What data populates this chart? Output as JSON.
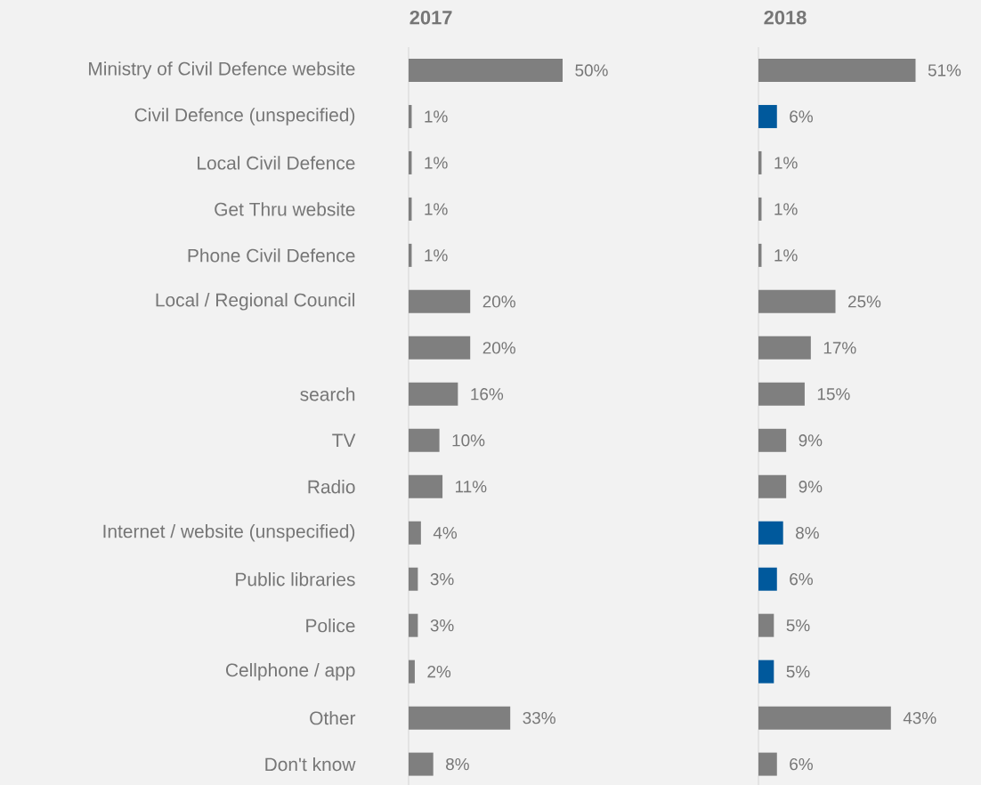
{
  "chart_data": [
    {
      "type": "bar",
      "orientation": "horizontal",
      "title": "2017",
      "tick_labels": "y",
      "categories": [
        "Ministry of Civil Defence website",
        "Civil Defence (unspecified)",
        "Local Civil Defence",
        "Get Thru website",
        "Phone Civil Defence",
        "Local / Regional Council",
        null,
        "search",
        "TV",
        "Radio",
        "Internet / website (unspecified)",
        "Public libraries",
        "Police",
        "Cellphone / app",
        "Other",
        "Don't know"
      ],
      "values": [
        50,
        1,
        1,
        1,
        1,
        20,
        20,
        16,
        10,
        11,
        4,
        3,
        3,
        2,
        33,
        8
      ],
      "value_labels": [
        "50%",
        "1%",
        "1%",
        "1%",
        "1%",
        "20%",
        "20%",
        "16%",
        "10%",
        "11%",
        "4%",
        "3%",
        "3%",
        "2%",
        "33%",
        "8%"
      ],
      "colors": [
        "#7f7f7f",
        "#7f7f7f",
        "#7f7f7f",
        "#7f7f7f",
        "#7f7f7f",
        "#7f7f7f",
        "#7f7f7f",
        "#7f7f7f",
        "#7f7f7f",
        "#7f7f7f",
        "#7f7f7f",
        "#7f7f7f",
        "#7f7f7f",
        "#7f7f7f",
        "#7f7f7f",
        "#7f7f7f"
      ]
    },
    {
      "type": "bar",
      "orientation": "horizontal",
      "title": "2018",
      "tick_labels": false,
      "values": [
        51,
        6,
        1,
        1,
        1,
        25,
        17,
        15,
        9,
        9,
        8,
        6,
        5,
        5,
        43,
        6
      ],
      "value_labels": [
        "51%",
        "6%",
        "1%",
        "1%",
        "1%",
        "25%",
        "17%",
        "15%",
        "9%",
        "9%",
        "8%",
        "6%",
        "5%",
        "5%",
        "43%",
        "6%"
      ],
      "colors": [
        "#7f7f7f",
        "#00599c",
        "#7f7f7f",
        "#7f7f7f",
        "#7f7f7f",
        "#7f7f7f",
        "#7f7f7f",
        "#7f7f7f",
        "#7f7f7f",
        "#7f7f7f",
        "#00599c",
        "#00599c",
        "#7f7f7f",
        "#00599c",
        "#7f7f7f",
        "#7f7f7f"
      ]
    }
  ]
}
